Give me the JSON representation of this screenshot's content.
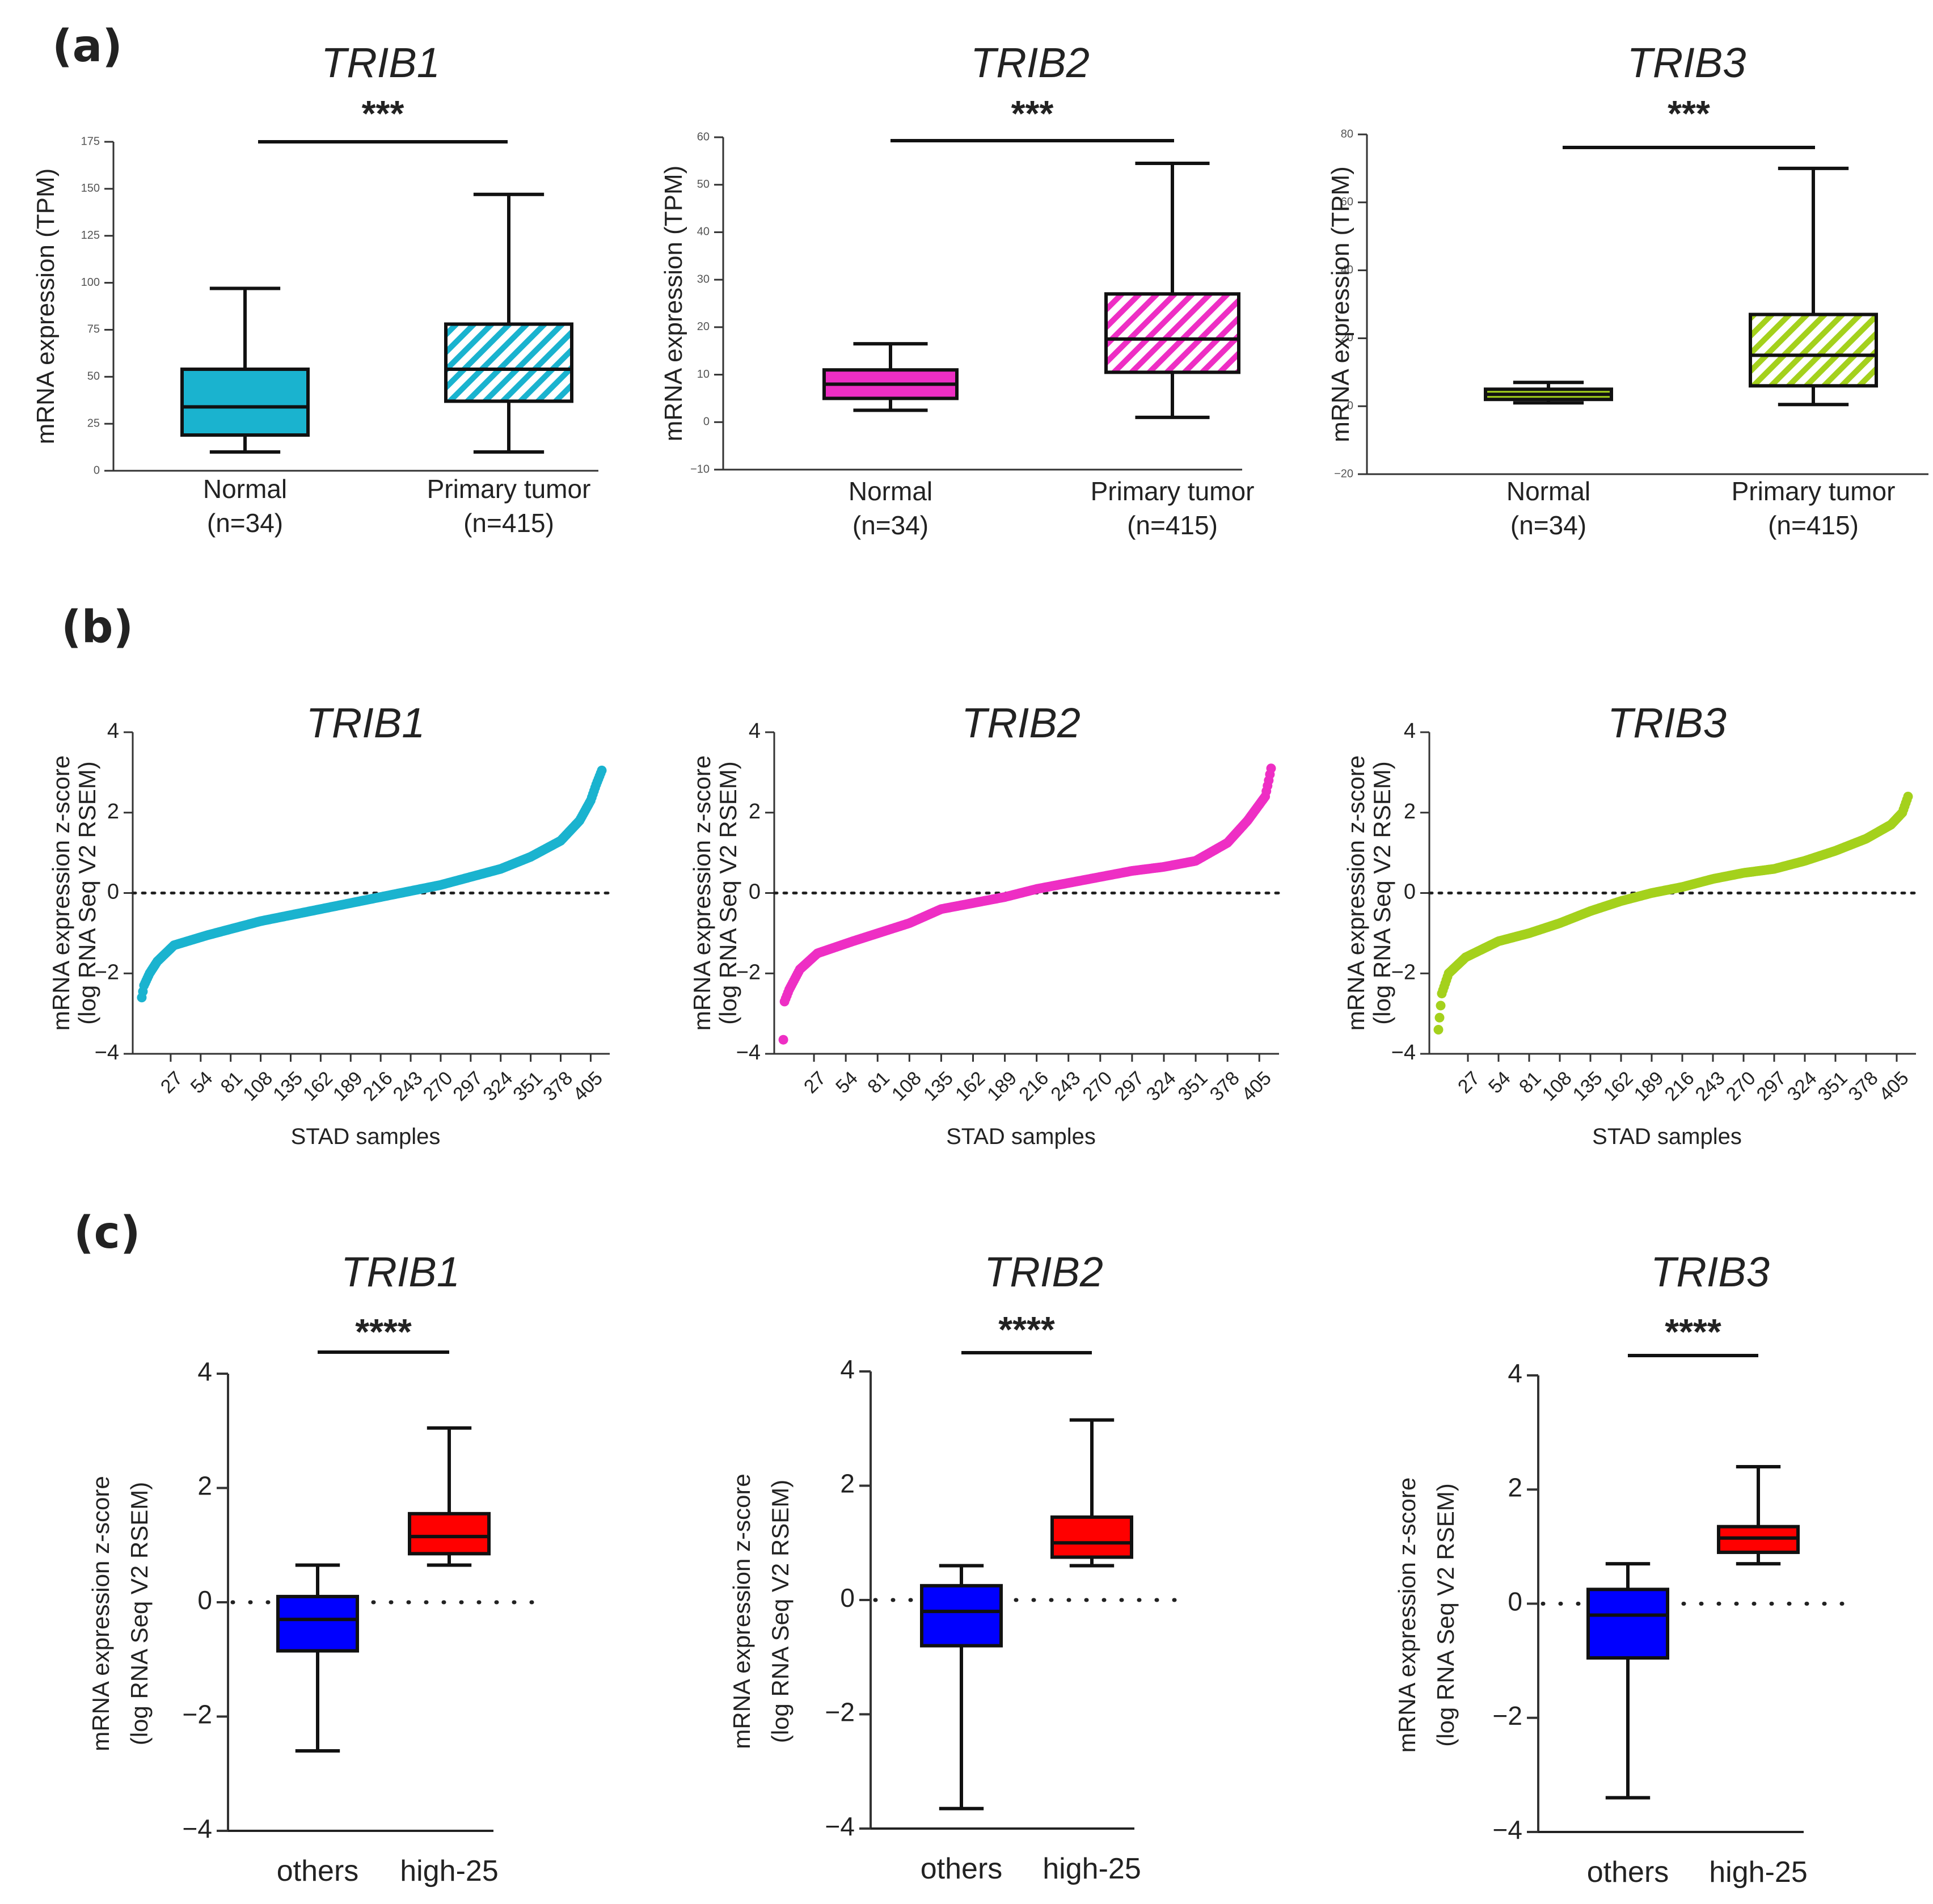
{
  "panel_labels": {
    "a": "(a)",
    "b": "(b)",
    "c": "(c)"
  },
  "colors": {
    "TRIB1": "#1ab3cf",
    "TRIB2": "#ee2ec4",
    "TRIB3": "#a4d11c",
    "others": "#0000ff",
    "high25": "#ff0000"
  },
  "chart_data": [
    {
      "id": "a1",
      "panel": "a",
      "type": "box",
      "title": "TRIB1",
      "significance": "***",
      "ylabel": "mRNA  expression  (TPM)",
      "ylim": [
        0,
        175
      ],
      "yticks": [
        0,
        25,
        50,
        75,
        100,
        125,
        150,
        175
      ],
      "groups": [
        {
          "label": "Normal",
          "n": "(n=34)",
          "whisker_low": 10,
          "q1": 19,
          "median": 34,
          "q3": 54,
          "whisker_high": 97,
          "hatched": false
        },
        {
          "label": "Primary tumor",
          "n": "(n=415)",
          "whisker_low": 10,
          "q1": 37,
          "median": 54,
          "q3": 78,
          "whisker_high": 147,
          "hatched": true
        }
      ]
    },
    {
      "id": "a2",
      "panel": "a",
      "type": "box",
      "title": "TRIB2",
      "significance": "***",
      "ylabel": "mRNA  expression  (TPM)",
      "ylim": [
        -10,
        60
      ],
      "yticks": [
        -10,
        0,
        10,
        20,
        30,
        40,
        50,
        60
      ],
      "groups": [
        {
          "label": "Normal",
          "n": "(n=34)",
          "whisker_low": 2.5,
          "q1": 5,
          "median": 8,
          "q3": 11,
          "whisker_high": 16.5,
          "hatched": false
        },
        {
          "label": "Primary tumor",
          "n": "(n=415)",
          "whisker_low": 1,
          "q1": 10.5,
          "median": 17.5,
          "q3": 27,
          "whisker_high": 54.5,
          "hatched": true
        }
      ]
    },
    {
      "id": "a3",
      "panel": "a",
      "type": "box",
      "title": "TRIB3",
      "significance": "***",
      "ylabel": "mRNA  expression  (TPM)",
      "ylim": [
        -20,
        80
      ],
      "yticks": [
        -20,
        0,
        20,
        40,
        60,
        80
      ],
      "groups": [
        {
          "label": "Normal",
          "n": "(n=34)",
          "whisker_low": 1,
          "q1": 2,
          "median": 3.5,
          "q3": 5,
          "whisker_high": 7,
          "hatched": false
        },
        {
          "label": "Primary tumor",
          "n": "(n=415)",
          "whisker_low": 0.5,
          "q1": 6,
          "median": 15,
          "q3": 27,
          "whisker_high": 70,
          "hatched": true
        }
      ]
    },
    {
      "id": "b1",
      "panel": "b",
      "type": "scatter",
      "title": "TRIB1",
      "ylabel_line1": "mRNA  expression z-score",
      "ylabel_line2": "(log RNA Seq V2 RSEM)",
      "xlabel": "STAD samples",
      "ylim": [
        -4,
        4
      ],
      "yticks": [
        -4,
        -2,
        0,
        2,
        4
      ],
      "xlim": [
        0,
        415
      ],
      "xticks": [
        27,
        54,
        81,
        108,
        135,
        162,
        189,
        216,
        243,
        270,
        297,
        324,
        351,
        378,
        405
      ],
      "n": 415,
      "curve": [
        [
          1,
          -2.6
        ],
        [
          3,
          -2.3
        ],
        [
          8,
          -2.0
        ],
        [
          15,
          -1.7
        ],
        [
          30,
          -1.3
        ],
        [
          60,
          -1.05
        ],
        [
          108,
          -0.7
        ],
        [
          162,
          -0.4
        ],
        [
          216,
          -0.1
        ],
        [
          243,
          0.05
        ],
        [
          270,
          0.2
        ],
        [
          297,
          0.4
        ],
        [
          324,
          0.6
        ],
        [
          351,
          0.9
        ],
        [
          378,
          1.3
        ],
        [
          395,
          1.8
        ],
        [
          405,
          2.3
        ],
        [
          410,
          2.7
        ],
        [
          415,
          3.05
        ]
      ]
    },
    {
      "id": "b2",
      "panel": "b",
      "type": "scatter",
      "title": "TRIB2",
      "ylabel_line1": "mRNA  expression z-score",
      "ylabel_line2": "(log RNA Seq V2 RSEM)",
      "xlabel": "STAD samples",
      "ylim": [
        -4,
        4
      ],
      "yticks": [
        -4,
        -2,
        0,
        2,
        4
      ],
      "xlim": [
        0,
        415
      ],
      "xticks": [
        27,
        54,
        81,
        108,
        135,
        162,
        189,
        216,
        243,
        270,
        297,
        324,
        351,
        378,
        405
      ],
      "n": 415,
      "curve": [
        [
          1,
          -3.65
        ],
        [
          2,
          -2.7
        ],
        [
          6,
          -2.4
        ],
        [
          15,
          -1.9
        ],
        [
          30,
          -1.5
        ],
        [
          60,
          -1.2
        ],
        [
          108,
          -0.75
        ],
        [
          135,
          -0.4
        ],
        [
          162,
          -0.25
        ],
        [
          189,
          -0.1
        ],
        [
          216,
          0.1
        ],
        [
          243,
          0.25
        ],
        [
          270,
          0.4
        ],
        [
          297,
          0.55
        ],
        [
          324,
          0.65
        ],
        [
          351,
          0.8
        ],
        [
          378,
          1.25
        ],
        [
          395,
          1.8
        ],
        [
          405,
          2.2
        ],
        [
          410,
          2.4
        ],
        [
          413,
          2.8
        ],
        [
          415,
          3.1
        ]
      ]
    },
    {
      "id": "b3",
      "panel": "b",
      "type": "scatter",
      "title": "TRIB3",
      "ylabel_line1": "mRNA  expression z-score",
      "ylabel_line2": "(log RNA Seq V2 RSEM)",
      "xlabel": "STAD samples",
      "ylim": [
        -4,
        4
      ],
      "yticks": [
        -4,
        -2,
        0,
        2,
        4
      ],
      "xlim": [
        0,
        415
      ],
      "xticks": [
        27,
        54,
        81,
        108,
        135,
        162,
        189,
        216,
        243,
        270,
        297,
        324,
        351,
        378,
        405
      ],
      "n": 415,
      "curve": [
        [
          1,
          -3.4
        ],
        [
          2,
          -3.1
        ],
        [
          4,
          -2.5
        ],
        [
          10,
          -2.0
        ],
        [
          25,
          -1.6
        ],
        [
          54,
          -1.2
        ],
        [
          81,
          -1.0
        ],
        [
          108,
          -0.75
        ],
        [
          135,
          -0.45
        ],
        [
          162,
          -0.2
        ],
        [
          189,
          0.0
        ],
        [
          216,
          0.15
        ],
        [
          243,
          0.35
        ],
        [
          270,
          0.5
        ],
        [
          297,
          0.6
        ],
        [
          324,
          0.8
        ],
        [
          351,
          1.05
        ],
        [
          378,
          1.35
        ],
        [
          400,
          1.7
        ],
        [
          410,
          2.0
        ],
        [
          415,
          2.4
        ]
      ]
    },
    {
      "id": "c1",
      "panel": "c",
      "type": "box",
      "title": "TRIB1",
      "significance": "****",
      "ylabel_line1": "mRNA  expression z-score",
      "ylabel_line2": "(log RNA Seq V2 RSEM)",
      "ylim": [
        -4,
        4
      ],
      "yticks": [
        -4,
        -2,
        0,
        2,
        4
      ],
      "groups": [
        {
          "label": "others",
          "whisker_low": -2.6,
          "q1": -0.85,
          "median": -0.3,
          "q3": 0.1,
          "whisker_high": 0.65,
          "color_key": "others"
        },
        {
          "label": "high-25",
          "whisker_low": 0.65,
          "q1": 0.85,
          "median": 1.15,
          "q3": 1.55,
          "whisker_high": 3.05,
          "color_key": "high25"
        }
      ]
    },
    {
      "id": "c2",
      "panel": "c",
      "type": "box",
      "title": "TRIB2",
      "significance": "****",
      "ylabel_line1": "mRNA  expression z-score",
      "ylabel_line2": "(log RNA Seq V2 RSEM)",
      "ylim": [
        -4,
        4
      ],
      "yticks": [
        -4,
        -2,
        0,
        2,
        4
      ],
      "groups": [
        {
          "label": "others",
          "whisker_low": -3.65,
          "q1": -0.8,
          "median": -0.2,
          "q3": 0.25,
          "whisker_high": 0.6,
          "color_key": "others"
        },
        {
          "label": "high-25",
          "whisker_low": 0.6,
          "q1": 0.75,
          "median": 1.0,
          "q3": 1.45,
          "whisker_high": 3.15,
          "color_key": "high25"
        }
      ]
    },
    {
      "id": "c3",
      "panel": "c",
      "type": "box",
      "title": "TRIB3",
      "significance": "****",
      "ylabel_line1": "mRNA  expression z-score",
      "ylabel_line2": "(log RNA Seq V2 RSEM)",
      "ylim": [
        -4,
        4
      ],
      "yticks": [
        -4,
        -2,
        0,
        2,
        4
      ],
      "groups": [
        {
          "label": "others",
          "whisker_low": -3.4,
          "q1": -0.95,
          "median": -0.2,
          "q3": 0.25,
          "whisker_high": 0.7,
          "color_key": "others"
        },
        {
          "label": "high-25",
          "whisker_low": 0.7,
          "q1": 0.9,
          "median": 1.15,
          "q3": 1.35,
          "whisker_high": 2.4,
          "color_key": "high25"
        }
      ]
    }
  ]
}
